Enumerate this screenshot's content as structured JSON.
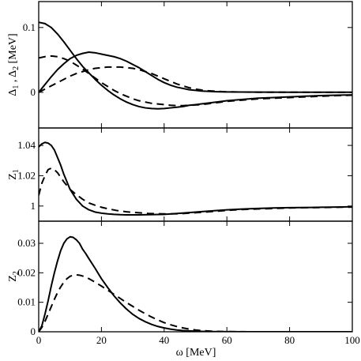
{
  "chart_data": {
    "type": "line",
    "xlabel": "ω [MeV]",
    "xlim": [
      0,
      100
    ],
    "xticks": [
      0,
      20,
      40,
      60,
      80,
      100
    ],
    "panels": [
      {
        "ylabel": "Δ1 , Δ2 [MeV]",
        "ylabel_main": "Δ",
        "ylabel_sub1": "1",
        "ylabel_mid": " , Δ",
        "ylabel_sub2": "2",
        "ylabel_unit": " [MeV]",
        "ylim": [
          -0.055,
          0.14
        ],
        "yticks": [
          0,
          0.1
        ],
        "yticklabels": [
          "0",
          "0.1"
        ],
        "series": [
          {
            "style": "solid",
            "x": [
              0,
              2,
              4,
              6,
              8,
              10,
              12,
              14,
              16,
              18,
              20,
              22,
              24,
              26,
              28,
              30,
              32,
              34,
              36,
              38,
              40,
              42,
              44,
              46,
              48,
              50,
              55,
              60,
              65,
              70,
              75,
              80,
              85,
              90,
              95,
              100
            ],
            "y": [
              0.108,
              0.106,
              0.1,
              0.09,
              0.078,
              0.065,
              0.052,
              0.04,
              0.03,
              0.02,
              0.011,
              0.003,
              -0.004,
              -0.01,
              -0.015,
              -0.019,
              -0.022,
              -0.024,
              -0.025,
              -0.0255,
              -0.025,
              -0.024,
              -0.023,
              -0.022,
              -0.02,
              -0.019,
              -0.016,
              -0.013,
              -0.011,
              -0.009,
              -0.008,
              -0.007,
              -0.006,
              -0.005,
              -0.0045,
              -0.004
            ]
          },
          {
            "style": "solid",
            "x": [
              0,
              2,
              4,
              6,
              8,
              10,
              12,
              14,
              16,
              18,
              20,
              22,
              24,
              26,
              28,
              30,
              32,
              34,
              36,
              38,
              40,
              42,
              44,
              46,
              48,
              50,
              52,
              54,
              56,
              58,
              60,
              65,
              70,
              80,
              90,
              100
            ],
            "y": [
              0,
              0.012,
              0.024,
              0.035,
              0.044,
              0.052,
              0.057,
              0.06,
              0.062,
              0.061,
              0.059,
              0.057,
              0.055,
              0.052,
              0.048,
              0.043,
              0.038,
              0.032,
              0.026,
              0.02,
              0.015,
              0.011,
              0.008,
              0.006,
              0.004,
              0.003,
              0.002,
              0.0015,
              0.001,
              0.0008,
              0.0006,
              0.0004,
              0.0003,
              0.0002,
              0.0001,
              0.0001
            ]
          },
          {
            "style": "dashed",
            "x": [
              0,
              2,
              4,
              6,
              8,
              10,
              12,
              14,
              16,
              18,
              20,
              22,
              24,
              26,
              28,
              30,
              32,
              34,
              36,
              38,
              40,
              42,
              44,
              46,
              48,
              50,
              52,
              55,
              60,
              65,
              70,
              75,
              80,
              85,
              90,
              95,
              100
            ],
            "y": [
              0.053,
              0.055,
              0.056,
              0.055,
              0.052,
              0.048,
              0.042,
              0.036,
              0.029,
              0.022,
              0.015,
              0.009,
              0.003,
              -0.002,
              -0.006,
              -0.01,
              -0.013,
              -0.015,
              -0.017,
              -0.018,
              -0.019,
              -0.02,
              -0.0205,
              -0.0205,
              -0.02,
              -0.0195,
              -0.019,
              -0.017,
              -0.014,
              -0.012,
              -0.01,
              -0.009,
              -0.008,
              -0.007,
              -0.006,
              -0.005,
              -0.0045
            ]
          },
          {
            "style": "dashed",
            "x": [
              0,
              2,
              4,
              6,
              8,
              10,
              12,
              14,
              16,
              18,
              20,
              22,
              24,
              26,
              28,
              30,
              32,
              34,
              36,
              38,
              40,
              42,
              44,
              46,
              48,
              50,
              52,
              54,
              56,
              58,
              60,
              65,
              70,
              80,
              90,
              100
            ],
            "y": [
              0,
              0.005,
              0.01,
              0.015,
              0.02,
              0.025,
              0.029,
              0.032,
              0.035,
              0.037,
              0.038,
              0.039,
              0.039,
              0.039,
              0.038,
              0.037,
              0.035,
              0.032,
              0.029,
              0.025,
              0.021,
              0.017,
              0.013,
              0.01,
              0.007,
              0.005,
              0.0035,
              0.0025,
              0.0018,
              0.0012,
              0.0008,
              0.0004,
              0.0002,
              0.0001,
              5e-05,
              0
            ]
          }
        ]
      },
      {
        "ylabel": "Z1",
        "ylabel_main": "Z",
        "ylabel_sub1": "1",
        "ylim": [
          0.99,
          1.0515
        ],
        "yticks": [
          1,
          1.02,
          1.04
        ],
        "yticklabels": [
          "1",
          "1.02",
          "1.04"
        ],
        "series": [
          {
            "style": "solid",
            "x": [
              0,
              1,
              2,
              3,
              4,
              5,
              6,
              7,
              8,
              9,
              10,
              12,
              14,
              16,
              18,
              20,
              22,
              24,
              26,
              28,
              30,
              32,
              35,
              40,
              45,
              50,
              55,
              60,
              65,
              70,
              75,
              80,
              85,
              90,
              95,
              100
            ],
            "y": [
              1.039,
              1.041,
              1.042,
              1.0415,
              1.04,
              1.037,
              1.032,
              1.027,
              1.021,
              1.016,
              1.011,
              1.0045,
              1.0,
              0.9975,
              0.996,
              0.9953,
              0.9948,
              0.9945,
              0.9943,
              0.9942,
              0.9942,
              0.9942,
              0.9943,
              0.9945,
              0.9952,
              0.996,
              0.9968,
              0.9975,
              0.998,
              0.9984,
              0.9987,
              0.9989,
              0.999,
              0.9992,
              0.9993,
              0.9995
            ]
          },
          {
            "style": "dashed",
            "x": [
              0,
              1,
              2,
              3,
              4,
              5,
              6,
              7,
              8,
              10,
              12,
              14,
              16,
              18,
              20,
              22,
              25,
              28,
              30,
              35,
              40,
              45,
              50,
              55,
              60,
              65,
              70,
              75,
              80,
              85,
              90,
              95,
              100
            ],
            "y": [
              1.007,
              1.015,
              1.02,
              1.024,
              1.025,
              1.024,
              1.022,
              1.019,
              1.016,
              1.011,
              1.0075,
              1.0045,
              1.002,
              1.0005,
              0.9992,
              0.9982,
              0.997,
              0.9962,
              0.9958,
              0.9951,
              0.9948,
              0.9949,
              0.9956,
              0.9963,
              0.9971,
              0.9977,
              0.9981,
              0.9984,
              0.9987,
              0.9989,
              0.999,
              0.9992,
              0.9993
            ]
          }
        ]
      },
      {
        "ylabel": "Z2",
        "ylabel_main": "Z",
        "ylabel_sub1": "2",
        "ylim": [
          0,
          0.0375
        ],
        "yticks": [
          0,
          0.01,
          0.02,
          0.03
        ],
        "yticklabels": [
          "0",
          "0.01",
          "0.02",
          "0.03"
        ],
        "series": [
          {
            "style": "solid",
            "x": [
              0,
              1,
              2,
              3,
              4,
              5,
              6,
              7,
              8,
              9,
              10,
              11,
              12,
              13,
              14,
              15,
              16,
              18,
              20,
              22,
              24,
              26,
              28,
              30,
              32,
              34,
              36,
              38,
              40,
              42,
              44,
              46,
              48,
              50,
              52,
              55,
              58,
              60,
              65,
              70,
              80,
              90,
              100
            ],
            "y": [
              0,
              0.002,
              0.006,
              0.0105,
              0.0155,
              0.02,
              0.024,
              0.0275,
              0.03,
              0.0315,
              0.0322,
              0.032,
              0.0312,
              0.03,
              0.028,
              0.0265,
              0.0248,
              0.0215,
              0.018,
              0.015,
              0.0122,
              0.0098,
              0.0077,
              0.0059,
              0.0045,
              0.0034,
              0.0025,
              0.0018,
              0.0013,
              0.0009,
              0.0006,
              0.0004,
              0.0003,
              0.0002,
              0.00012,
              6e-05,
              3e-05,
              2e-05,
              0,
              0,
              0,
              0,
              0
            ]
          },
          {
            "style": "dashed",
            "x": [
              0,
              1,
              2,
              3,
              4,
              5,
              6,
              7,
              8,
              9,
              10,
              11,
              12,
              13,
              14,
              15,
              16,
              18,
              20,
              22,
              24,
              26,
              28,
              30,
              32,
              34,
              36,
              38,
              40,
              42,
              44,
              46,
              48,
              50,
              52,
              55,
              58,
              60,
              65,
              70,
              80,
              90,
              100
            ],
            "y": [
              0,
              0.0015,
              0.0035,
              0.006,
              0.0085,
              0.011,
              0.0133,
              0.0152,
              0.0168,
              0.018,
              0.0188,
              0.0192,
              0.0193,
              0.0192,
              0.0189,
              0.0185,
              0.018,
              0.0168,
              0.0155,
              0.0141,
              0.0127,
              0.0113,
              0.0099,
              0.0086,
              0.0073,
              0.0061,
              0.005,
              0.004,
              0.0031,
              0.0024,
              0.0018,
              0.0013,
              0.0009,
              0.0006,
              0.0004,
              0.0002,
              0.0001,
              6e-05,
              2e-05,
              0,
              0,
              0,
              0
            ]
          }
        ]
      }
    ]
  }
}
